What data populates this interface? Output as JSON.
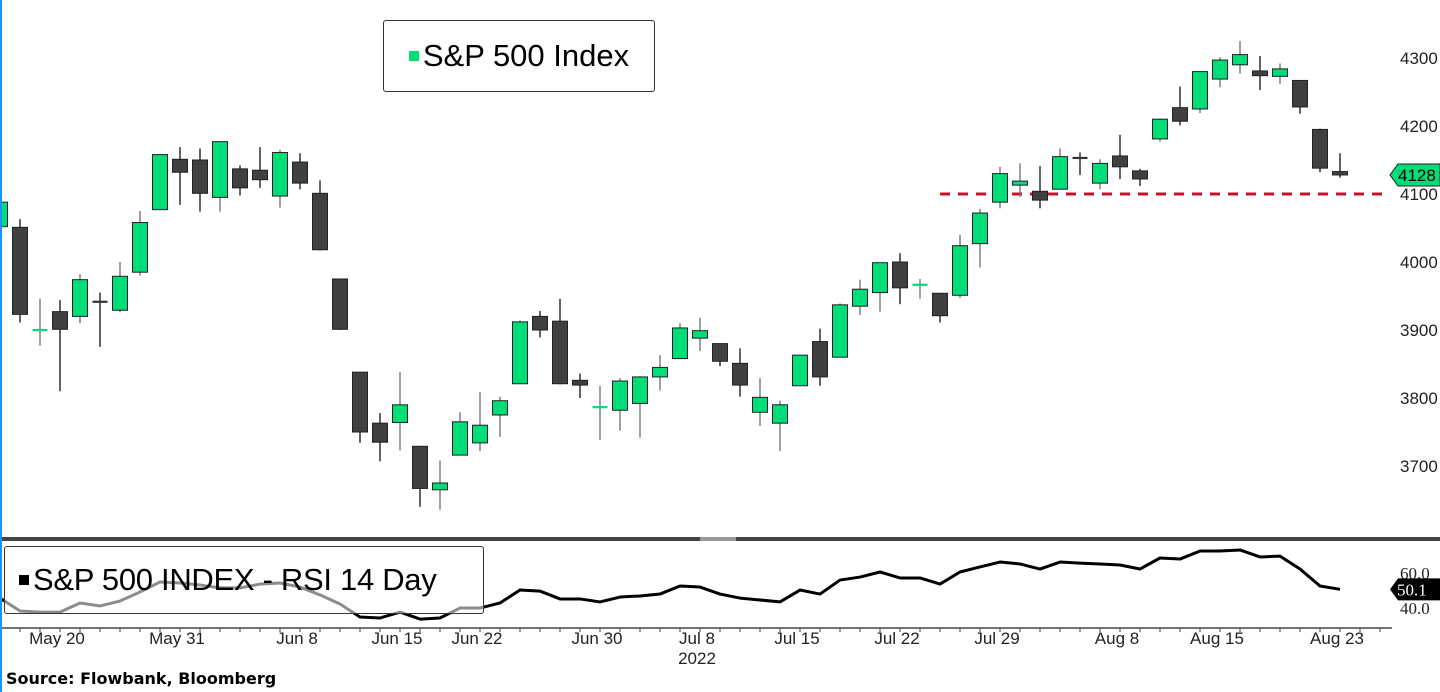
{
  "chart_data": {
    "type": "candlestick",
    "title": "S&P 500 Index",
    "ylim": [
      3600,
      4385
    ],
    "yticks": [
      "4300",
      "4200",
      "4100",
      "4000",
      "3900",
      "3800",
      "3700"
    ],
    "ytick_values": [
      4300,
      4200,
      4100,
      4000,
      3900,
      3800,
      3700
    ],
    "last_price_label": "4128",
    "last_price": 4128,
    "support_level": 4100,
    "support_from_index": 47,
    "ohlc": [
      [
        4052,
        4090,
        4033,
        4088
      ],
      [
        4051,
        4063,
        3911,
        3923
      ],
      [
        3899,
        3946,
        3877,
        3901
      ],
      [
        3927,
        3944,
        3810,
        3901
      ],
      [
        3920,
        3982,
        3910,
        3974
      ],
      [
        3942,
        3955,
        3875,
        3941
      ],
      [
        3929,
        4000,
        3926,
        3979
      ],
      [
        3985,
        4075,
        3980,
        4058
      ],
      [
        4077,
        4158,
        4077,
        4158
      ],
      [
        4151,
        4169,
        4084,
        4132
      ],
      [
        4150,
        4167,
        4074,
        4101
      ],
      [
        4095,
        4177,
        4074,
        4177
      ],
      [
        4137,
        4142,
        4098,
        4109
      ],
      [
        4135,
        4169,
        4109,
        4121
      ],
      [
        4097,
        4165,
        4080,
        4161
      ],
      [
        4147,
        4160,
        4107,
        4116
      ],
      [
        4101,
        4120,
        4017,
        4018
      ],
      [
        3975,
        3975,
        3900,
        3901
      ],
      [
        3838,
        3838,
        3734,
        3750
      ],
      [
        3763,
        3778,
        3707,
        3735
      ],
      [
        3764,
        3838,
        3723,
        3790
      ],
      [
        3729,
        3729,
        3640,
        3667
      ],
      [
        3665,
        3708,
        3636,
        3675
      ],
      [
        3716,
        3779,
        3716,
        3765
      ],
      [
        3734,
        3809,
        3722,
        3760
      ],
      [
        3775,
        3802,
        3743,
        3796
      ],
      [
        3821,
        3914,
        3821,
        3912
      ],
      [
        3920,
        3928,
        3889,
        3900
      ],
      [
        3913,
        3946,
        3820,
        3821
      ],
      [
        3826,
        3836,
        3800,
        3819
      ],
      [
        3786,
        3818,
        3738,
        3787
      ],
      [
        3782,
        3829,
        3752,
        3825
      ],
      [
        3792,
        3832,
        3742,
        3831
      ],
      [
        3831,
        3863,
        3811,
        3845
      ],
      [
        3858,
        3910,
        3858,
        3903
      ],
      [
        3888,
        3918,
        3869,
        3899
      ],
      [
        3880,
        3880,
        3847,
        3854
      ],
      [
        3851,
        3873,
        3802,
        3819
      ],
      [
        3779,
        3829,
        3759,
        3801
      ],
      [
        3763,
        3796,
        3722,
        3790
      ],
      [
        3818,
        3863,
        3818,
        3863
      ],
      [
        3883,
        3902,
        3818,
        3831
      ],
      [
        3860,
        3939,
        3860,
        3937
      ],
      [
        3935,
        3974,
        3922,
        3960
      ],
      [
        3955,
        3999,
        3927,
        3999
      ],
      [
        4000,
        4013,
        3938,
        3962
      ],
      [
        3966,
        3975,
        3946,
        3967
      ],
      [
        3954,
        3954,
        3911,
        3921
      ],
      [
        3951,
        4040,
        3947,
        4024
      ],
      [
        4027,
        4078,
        3992,
        4072
      ],
      [
        4088,
        4140,
        4079,
        4130
      ],
      [
        4113,
        4145,
        4096,
        4119
      ],
      [
        4104,
        4141,
        4079,
        4091
      ],
      [
        4107,
        4167,
        4107,
        4155
      ],
      [
        4154,
        4161,
        4128,
        4152
      ],
      [
        4116,
        4151,
        4107,
        4145
      ],
      [
        4156,
        4187,
        4122,
        4140
      ],
      [
        4134,
        4137,
        4112,
        4122
      ],
      [
        4181,
        4211,
        4177,
        4210
      ],
      [
        4227,
        4258,
        4201,
        4207
      ],
      [
        4225,
        4280,
        4219,
        4280
      ],
      [
        4269,
        4301,
        4257,
        4297
      ],
      [
        4290,
        4325,
        4277,
        4305
      ],
      [
        4281,
        4303,
        4253,
        4274
      ],
      [
        4273,
        4292,
        4262,
        4284
      ],
      [
        4267,
        4267,
        4218,
        4228
      ],
      [
        4195,
        4196,
        4132,
        4138
      ],
      [
        4133,
        4160,
        4124,
        4128
      ]
    ],
    "xticks": [
      {
        "label": "May 20",
        "index": 3
      },
      {
        "label": "May 31",
        "index": 9
      },
      {
        "label": "Jun 8",
        "index": 15
      },
      {
        "label": "Jun 15",
        "index": 20
      },
      {
        "label": "Jun 22",
        "index": 24
      },
      {
        "label": "Jun 30",
        "index": 30
      },
      {
        "label": "Jul 8",
        "index": 35
      },
      {
        "label": "Jul 15",
        "index": 40
      },
      {
        "label": "Jul 22",
        "index": 45
      },
      {
        "label": "Jul 29",
        "index": 50
      },
      {
        "label": "Aug 8",
        "index": 56
      },
      {
        "label": "Aug 15",
        "index": 61
      },
      {
        "label": "Aug 23",
        "index": 67
      }
    ],
    "year_label": "2022",
    "year_index": 35,
    "rsi": {
      "title": "S&P 500 INDEX - RSI 14 Day",
      "ylim": [
        27,
        75
      ],
      "yticks": [
        "60.0",
        "40.0"
      ],
      "ytick_values": [
        60,
        40
      ],
      "last_label": "50.1",
      "last": 50.1,
      "values": [
        45.1,
        37.7,
        37.1,
        37.1,
        42.3,
        40.6,
        43.4,
        48.6,
        54.3,
        53.7,
        52.6,
        50.9,
        50.9,
        53.1,
        53.7,
        51.4,
        46.9,
        41.7,
        34.3,
        33.7,
        37.1,
        33.1,
        33.7,
        39.4,
        39.4,
        42.3,
        49.7,
        49.1,
        44.6,
        44.6,
        42.9,
        45.7,
        46.3,
        47.4,
        52.0,
        51.4,
        47.4,
        45.1,
        44.0,
        42.9,
        49.7,
        47.4,
        55.4,
        57.1,
        60.0,
        56.6,
        56.6,
        53.1,
        60.0,
        62.9,
        65.7,
        64.6,
        61.7,
        65.7,
        65.1,
        64.6,
        64.0,
        61.7,
        68.0,
        67.4,
        72.0,
        72.0,
        72.6,
        68.6,
        69.1,
        61.7,
        52.0,
        50.1
      ]
    },
    "colors": {
      "up": "#00DC78",
      "down": "#404040",
      "support": "#C8102E",
      "rsi_line": "#000000"
    }
  },
  "source": "Source: Flowbank, Bloomberg"
}
